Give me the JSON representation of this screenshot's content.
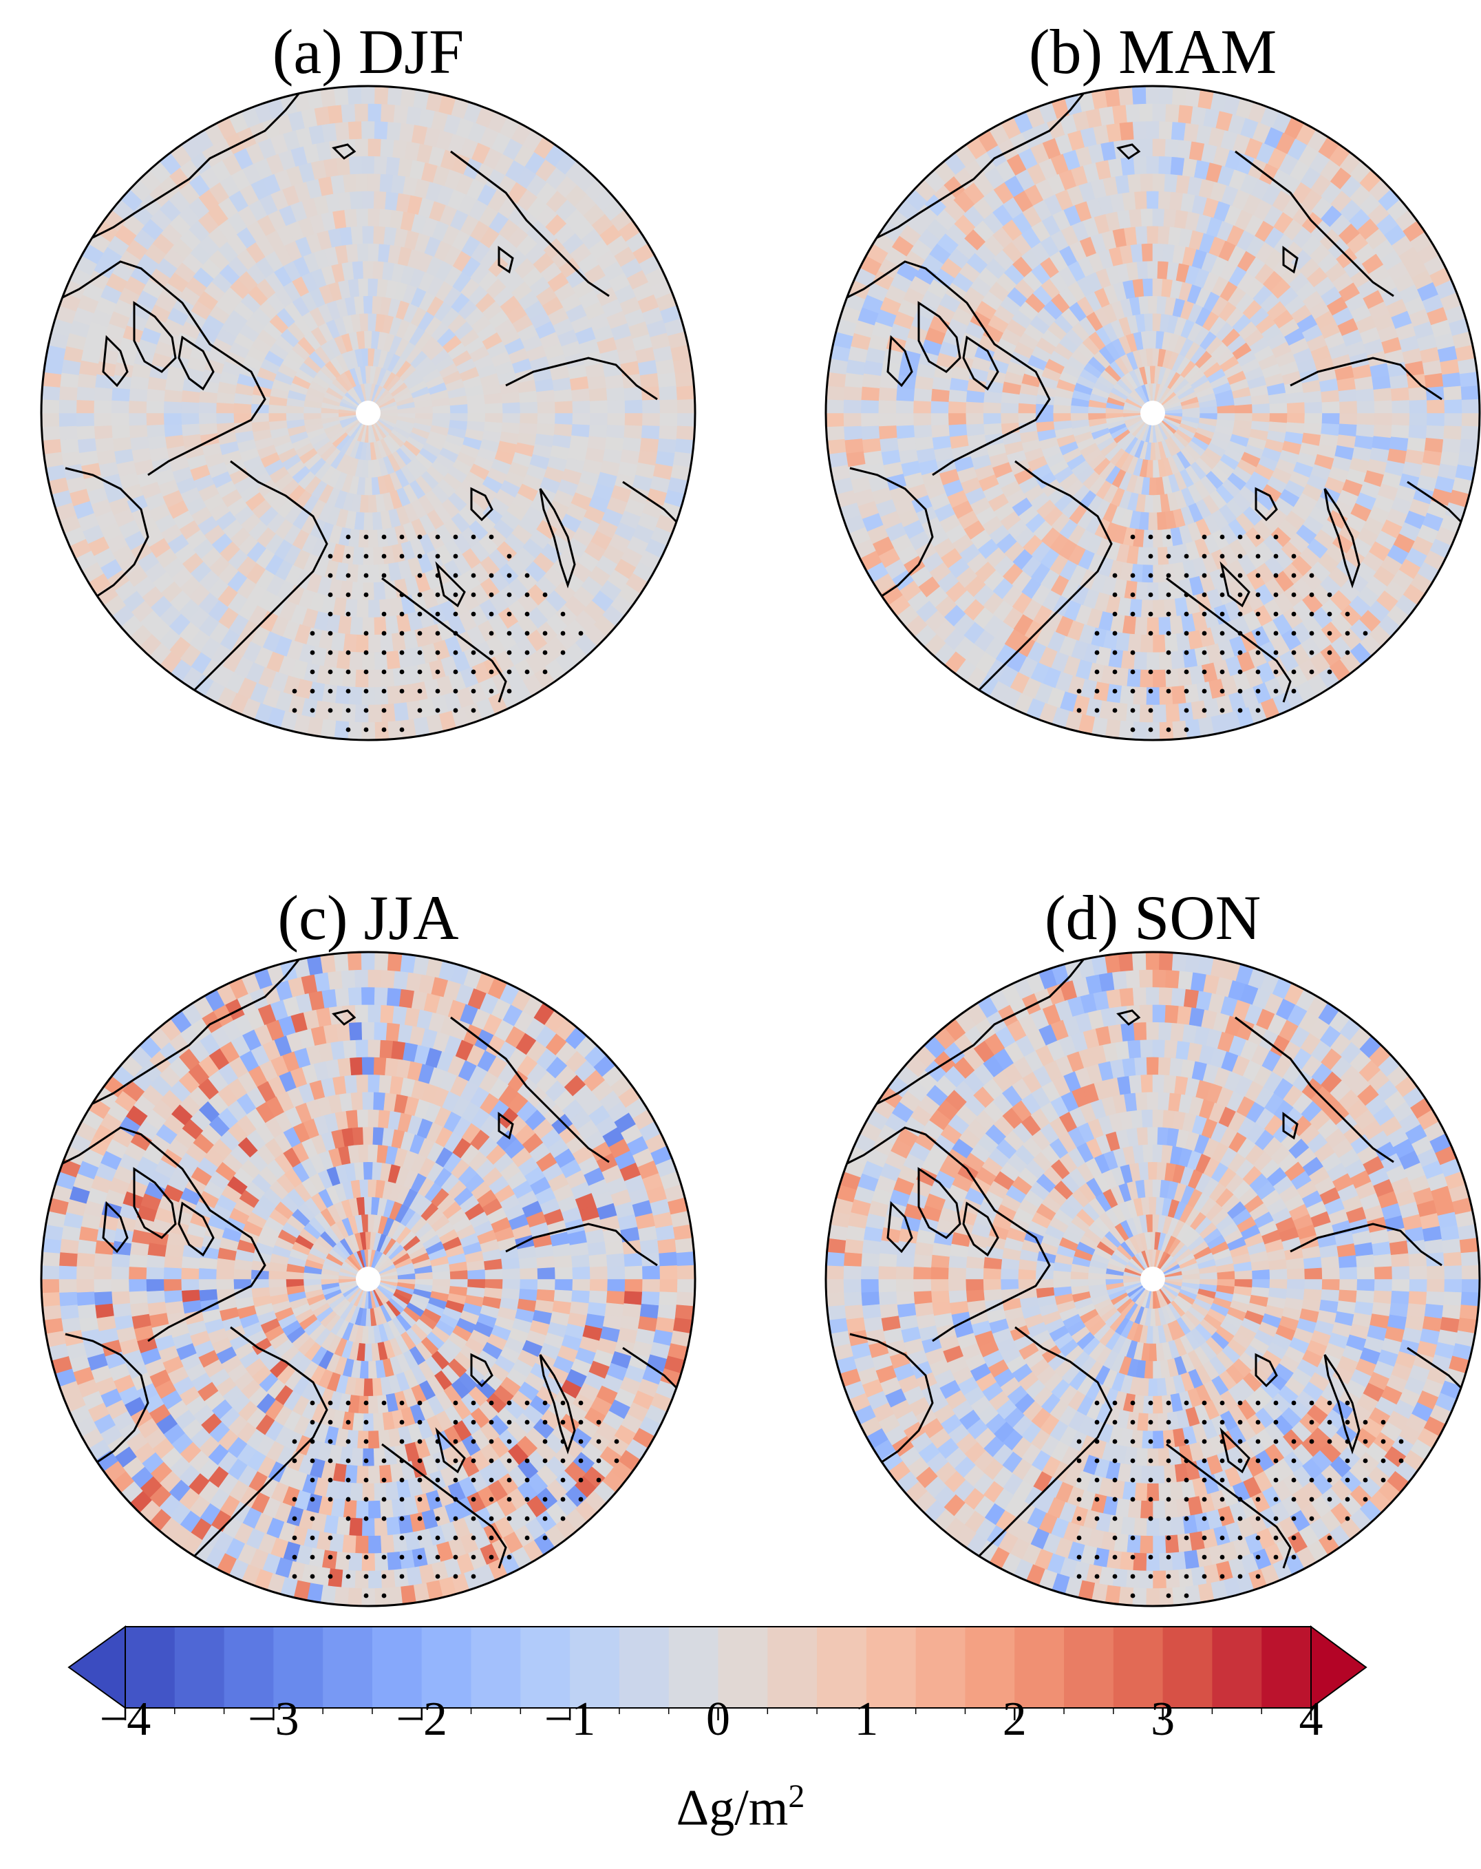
{
  "panels": [
    {
      "id": "a",
      "title": "(a) DJF",
      "season": "DJF",
      "variability": 0.22,
      "stipple": "atlantic"
    },
    {
      "id": "b",
      "title": "(b) MAM",
      "season": "MAM",
      "variability": 0.42,
      "stipple": "atlantic"
    },
    {
      "id": "c",
      "title": "(c) JJA",
      "season": "JJA",
      "variability": 0.75,
      "stipple": "atlantic-wide"
    },
    {
      "id": "d",
      "title": "(d) SON",
      "season": "SON",
      "variability": 0.6,
      "stipple": "atlantic-wide"
    }
  ],
  "colorbar": {
    "ticks": [
      "−4",
      "−3",
      "−2",
      "−1",
      "0",
      "1",
      "2",
      "3",
      "4"
    ],
    "min": -4,
    "max": 4,
    "levels": 24,
    "colormap": "coolwarm",
    "extend": "both",
    "label_main": "Δg/m",
    "label_sup": "2",
    "colors": {
      "low": "#3b4cc0",
      "mid": "#dddcdc",
      "high": "#b40426"
    }
  },
  "map": {
    "projection": "north-polar-stereographic",
    "coastline_color": "#000000",
    "pole_marker_color": "#ffffff",
    "stipple_color": "#000000"
  }
}
